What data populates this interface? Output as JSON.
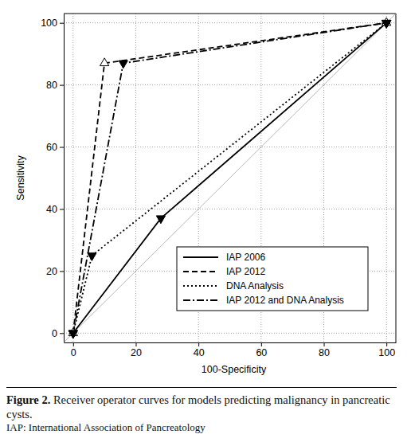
{
  "chart_data": {
    "type": "line",
    "caption_label": "Figure 2.",
    "title": "Receiver operator curves for models predicting malignancy in pancreatic cysts.",
    "note": "IAP: International Association of Pancreatology",
    "x_label": "100-Specificity",
    "y_label": "Sensitivity",
    "xlim": [
      -3,
      103
    ],
    "ylim": [
      -3,
      103
    ],
    "xticks": [
      0,
      20,
      40,
      60,
      80,
      100
    ],
    "yticks": [
      0,
      20,
      40,
      60,
      80,
      100
    ],
    "grid": true,
    "legend": "lower right",
    "series": [
      {
        "name": "IAP 2006",
        "color": "#000000",
        "line_style": "solid",
        "marker": "triangle-down",
        "x": [
          0,
          28,
          100
        ],
        "values": [
          0,
          37,
          100
        ]
      },
      {
        "name": "IAP 2012",
        "color": "#000000",
        "line_style": "dashed",
        "marker": "triangle-open",
        "x": [
          0,
          10,
          100
        ],
        "values": [
          0,
          87,
          100
        ]
      },
      {
        "name": "DNA Analysis",
        "color": "#000000",
        "line_style": "dotted",
        "marker": "triangle-down",
        "x": [
          0,
          6,
          100
        ],
        "values": [
          0,
          25,
          100
        ]
      },
      {
        "name": "IAP 2012 and DNA Analysis",
        "color": "#000000",
        "line_style": "dashdot",
        "marker": "triangle-down",
        "x": [
          0,
          16,
          100
        ],
        "values": [
          0,
          87,
          100
        ]
      }
    ]
  }
}
